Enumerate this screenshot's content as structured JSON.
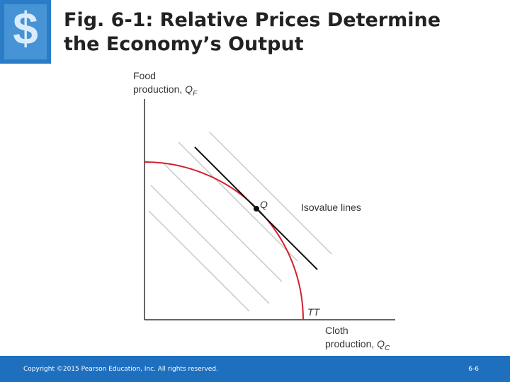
{
  "header": {
    "title": [
      "Fig. 6-1: Relative Prices Determine",
      "the Economy’s Output"
    ]
  },
  "diagram": {
    "y_axis_label": {
      "line1": "Food",
      "line2": "production, ",
      "variable": "Q",
      "subscript": "F"
    },
    "x_axis_label": {
      "line1": "Cloth",
      "line2": "production, ",
      "variable": "Q",
      "subscript": "C"
    },
    "point_label": "Q",
    "lines_label": "Isovalue lines",
    "curve_label": "TT"
  },
  "footer": {
    "copyright": "Copyright ©2015 Pearson Education, Inc. All rights reserved.",
    "page": "6-6"
  }
}
